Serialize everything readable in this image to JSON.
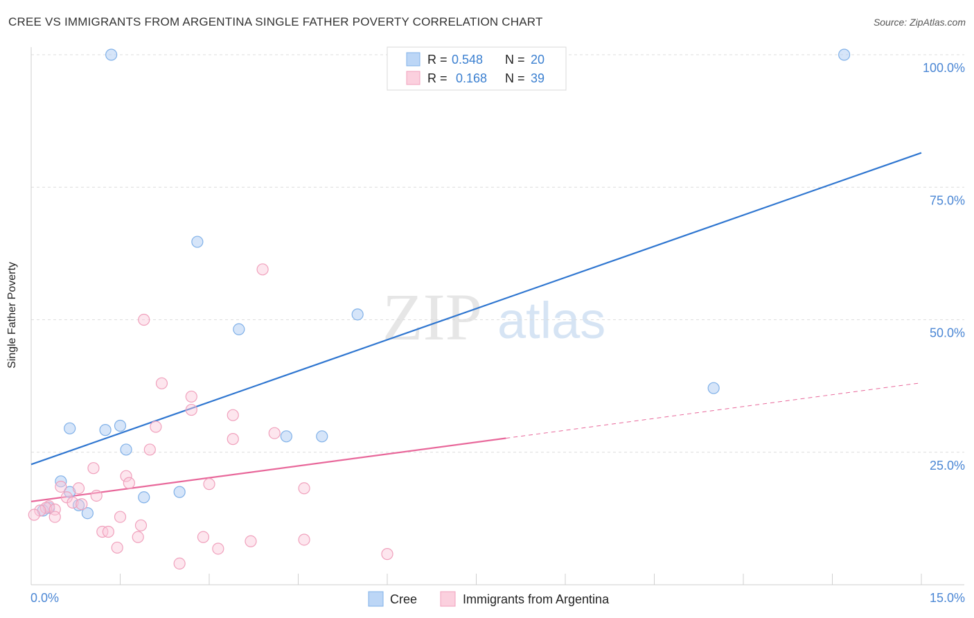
{
  "title": "CREE VS IMMIGRANTS FROM ARGENTINA SINGLE FATHER POVERTY CORRELATION CHART",
  "source": "Source: ZipAtlas.com",
  "watermark": {
    "zip": "ZIP",
    "atlas": "atlas"
  },
  "colors": {
    "cree": "#7fb0e8",
    "cree_line": "#2f76d0",
    "argentina": "#f0a0bc",
    "argentina_line": "#e8679a",
    "tick_label": "#4a86d4"
  },
  "legend_top": [
    {
      "r_label": "R =",
      "r_value": "0.548",
      "n_label": "N =",
      "n_value": "20"
    },
    {
      "r_label": "R =",
      "r_value": "0.168",
      "n_label": "N =",
      "n_value": "39"
    }
  ],
  "chart_data": {
    "type": "scatter",
    "title": "CREE VS IMMIGRANTS FROM ARGENTINA SINGLE FATHER POVERTY CORRELATION CHART",
    "xlabel": "",
    "ylabel": "Single Father Poverty",
    "xlim": [
      0,
      15
    ],
    "ylim": [
      0,
      100
    ],
    "x_tick_labels": [
      "0.0%",
      "15.0%"
    ],
    "y_tick_labels": [
      "25.0%",
      "50.0%",
      "75.0%",
      "100.0%"
    ],
    "y_ticks": [
      25,
      50,
      75,
      100
    ],
    "grid": true,
    "legend_position": "bottom",
    "series": [
      {
        "name": "Cree",
        "color": "#7fb0e8",
        "points": [
          [
            1.35,
            100
          ],
          [
            13.7,
            100
          ],
          [
            2.8,
            64.7
          ],
          [
            3.5,
            48.2
          ],
          [
            5.5,
            51.0
          ],
          [
            11.5,
            37.1
          ],
          [
            0.65,
            29.5
          ],
          [
            1.25,
            29.2
          ],
          [
            1.5,
            30.0
          ],
          [
            1.6,
            25.5
          ],
          [
            4.3,
            28.0
          ],
          [
            4.9,
            28.0
          ],
          [
            0.5,
            19.5
          ],
          [
            0.65,
            17.5
          ],
          [
            0.8,
            15.0
          ],
          [
            0.95,
            13.5
          ],
          [
            1.9,
            16.5
          ],
          [
            2.5,
            17.5
          ],
          [
            0.3,
            14.5
          ],
          [
            0.2,
            14.0
          ]
        ],
        "trend": {
          "x": [
            0,
            15
          ],
          "y": [
            22.7,
            81.5
          ],
          "dashed_from": null
        }
      },
      {
        "name": "Immigrants from Argentina",
        "color": "#f0a0bc",
        "points": [
          [
            3.9,
            59.5
          ],
          [
            1.9,
            50.0
          ],
          [
            2.2,
            38.0
          ],
          [
            2.7,
            35.5
          ],
          [
            2.7,
            33.0
          ],
          [
            3.4,
            32.0
          ],
          [
            2.1,
            29.8
          ],
          [
            3.4,
            27.5
          ],
          [
            4.1,
            28.6
          ],
          [
            2.0,
            25.5
          ],
          [
            1.05,
            22.0
          ],
          [
            1.6,
            20.5
          ],
          [
            1.65,
            19.2
          ],
          [
            3.0,
            19.0
          ],
          [
            4.6,
            18.2
          ],
          [
            0.5,
            18.5
          ],
          [
            0.8,
            18.2
          ],
          [
            1.1,
            16.8
          ],
          [
            0.6,
            16.5
          ],
          [
            0.7,
            15.5
          ],
          [
            0.85,
            15.2
          ],
          [
            0.3,
            14.8
          ],
          [
            0.25,
            14.5
          ],
          [
            0.4,
            14.2
          ],
          [
            0.15,
            14.0
          ],
          [
            0.05,
            13.2
          ],
          [
            0.4,
            12.8
          ],
          [
            1.5,
            12.8
          ],
          [
            1.85,
            11.2
          ],
          [
            1.2,
            10.0
          ],
          [
            1.3,
            10.0
          ],
          [
            1.8,
            9.0
          ],
          [
            2.9,
            9.0
          ],
          [
            4.6,
            8.5
          ],
          [
            3.7,
            8.2
          ],
          [
            1.45,
            7.0
          ],
          [
            3.15,
            6.8
          ],
          [
            6.0,
            5.8
          ],
          [
            2.5,
            4.0
          ]
        ],
        "trend": {
          "x": [
            0,
            15
          ],
          "y": [
            15.7,
            38.1
          ],
          "dashed_from": 8.0
        }
      }
    ]
  },
  "legend_bottom": [
    {
      "label": "Cree"
    },
    {
      "label": "Immigrants from Argentina"
    }
  ]
}
